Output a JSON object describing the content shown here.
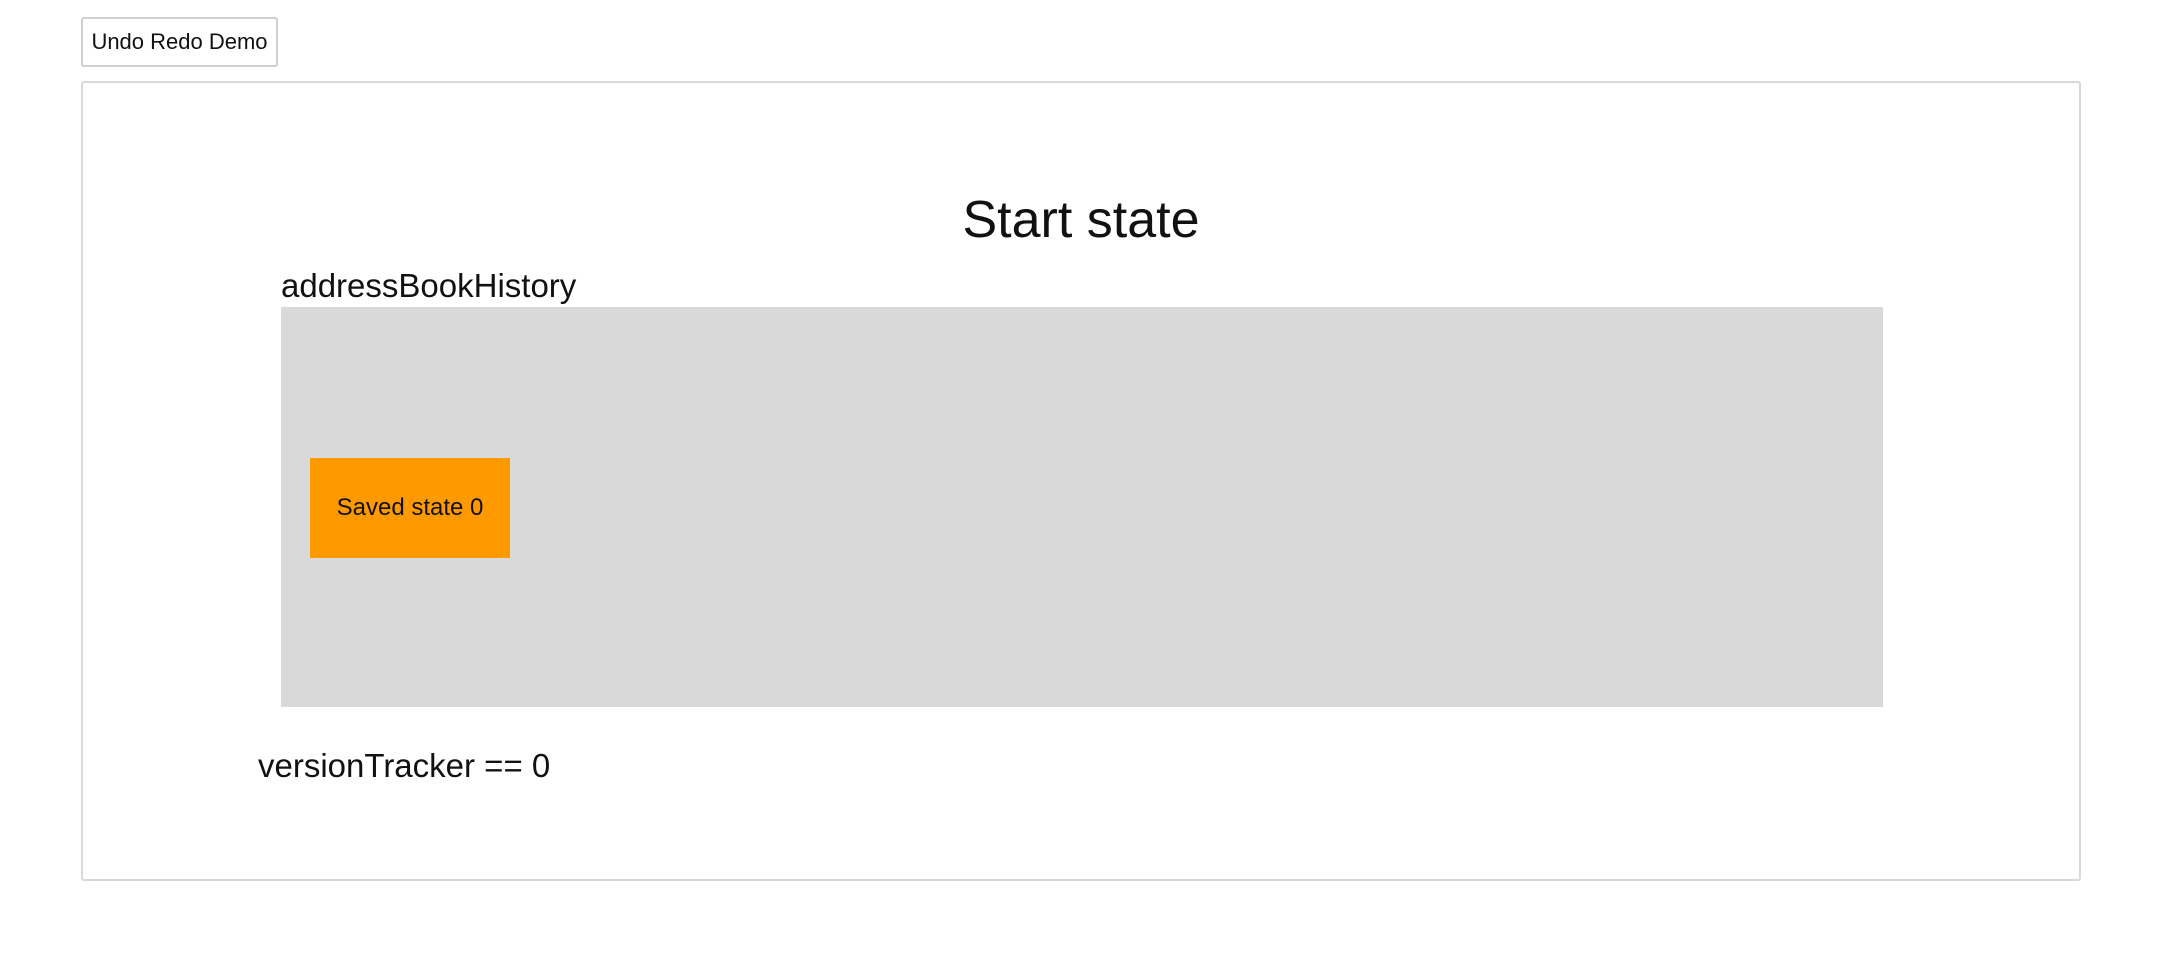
{
  "toolbar": {
    "demo_button_label": "Undo Redo Demo"
  },
  "stage": {
    "title": "Start state",
    "history": {
      "label": "addressBookHistory",
      "states": [
        {
          "label": "Saved state 0",
          "color": "#ff9900"
        }
      ]
    },
    "version_tracker": "versionTracker == 0"
  },
  "colors": {
    "history_panel": "#d9d9d9",
    "saved_state": "#ff9900",
    "border": "#d9d9d9"
  }
}
